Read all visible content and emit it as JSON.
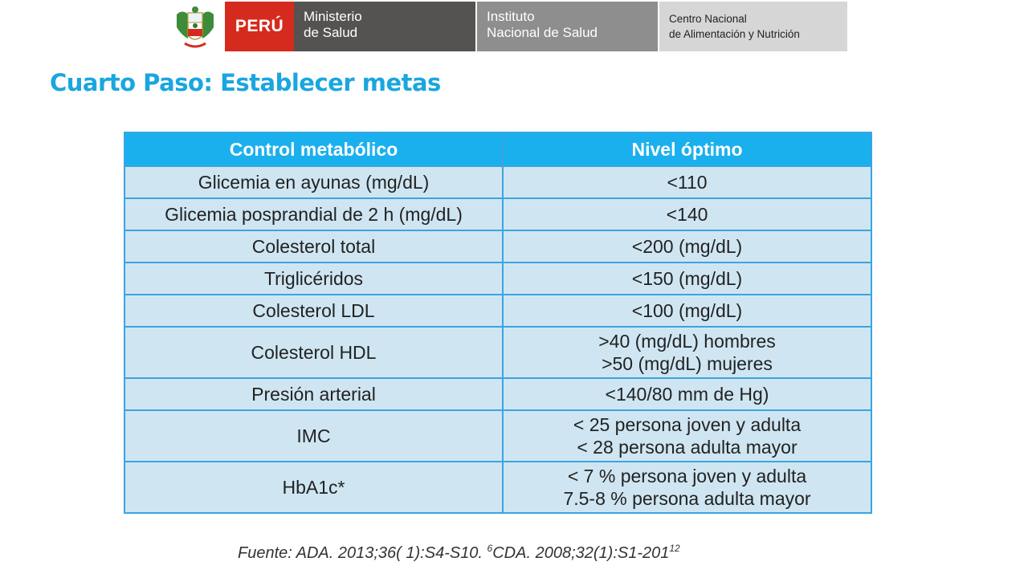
{
  "header": {
    "country": "PERÚ",
    "ministry": [
      "Ministerio",
      "de Salud"
    ],
    "institute": [
      "Instituto",
      "Nacional de Salud"
    ],
    "center": [
      "Centro Nacional",
      "de Alimentación y Nutrición"
    ],
    "colors": {
      "peru_red": "#d52b1e",
      "ministry_bg": "#555352",
      "institute_bg": "#8f8e8e",
      "center_bg": "#d6d6d6"
    }
  },
  "title": "Cuarto Paso: Establecer metas",
  "table": {
    "headers": [
      "Control metabólico",
      "Nivel óptimo"
    ],
    "rows": [
      {
        "control": "Glicemia en ayunas (mg/dL)",
        "nivel": [
          "<110"
        ]
      },
      {
        "control": "Glicemia posprandial de 2 h (mg/dL)",
        "nivel": [
          "<140"
        ]
      },
      {
        "control": "Colesterol total",
        "nivel": [
          "<200 (mg/dL)"
        ]
      },
      {
        "control": "Triglicéridos",
        "nivel": [
          "<150 (mg/dL)"
        ]
      },
      {
        "control": "Colesterol LDL",
        "nivel": [
          "<100 (mg/dL)"
        ]
      },
      {
        "control": "Colesterol HDL",
        "nivel": [
          ">40 (mg/dL) hombres",
          ">50 (mg/dL) mujeres"
        ]
      },
      {
        "control": "Presión arterial",
        "nivel": [
          "<140/80 mm de Hg)"
        ]
      },
      {
        "control": "IMC",
        "nivel": [
          "< 25 persona joven y adulta",
          "< 28 persona adulta mayor"
        ]
      },
      {
        "control": "HbA1c*",
        "nivel": [
          "< 7 % persona joven y adulta",
          "7.5-8 % persona adulta mayor"
        ]
      }
    ],
    "colors": {
      "header_bg": "#1ab0ee",
      "cell_bg": "#cfe6f2",
      "border": "#3ba4e0"
    }
  },
  "source": {
    "prefix": "Fuente: ADA. 2013;36( 1):S4-S10. ",
    "ref1": "6",
    "middle": "CDA. 2008;32(1):S1-201",
    "ref2": "12"
  }
}
